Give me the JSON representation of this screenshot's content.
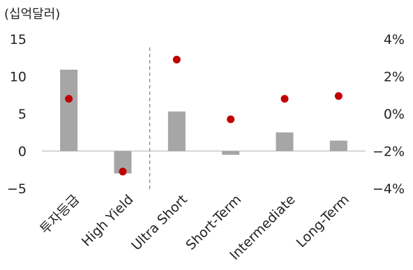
{
  "chart_data": {
    "type": "bar",
    "unit_label": "(십억달러)",
    "categories": [
      "투자등급",
      "High Yield",
      "Ultra Short",
      "Short-Term",
      "Intermediate",
      "Long-Term"
    ],
    "series": [
      {
        "axis": "left",
        "chart_type": "bar",
        "values": [
          10.9,
          -3.0,
          5.3,
          -0.5,
          2.5,
          1.4
        ]
      },
      {
        "axis": "right",
        "chart_type": "scatter",
        "values": [
          0.8,
          -3.1,
          2.9,
          -0.3,
          0.8,
          0.95
        ]
      }
    ],
    "y_left": {
      "min": -5,
      "max": 15,
      "ticks": [
        15,
        10,
        5,
        0,
        -5
      ],
      "tick_labels": [
        "15",
        "10",
        "5",
        "0",
        "−5"
      ]
    },
    "y_right": {
      "min": -4,
      "max": 4,
      "ticks": [
        4,
        2,
        0,
        -2,
        -4
      ],
      "tick_labels": [
        "4%",
        "2%",
        "0%",
        "−2%",
        "−4%"
      ]
    },
    "divider_after_category": 1,
    "colors": {
      "bar": "#a6a6a6",
      "dot": "#c00000",
      "axis": "#bfbfbf",
      "divider": "#808080"
    }
  }
}
